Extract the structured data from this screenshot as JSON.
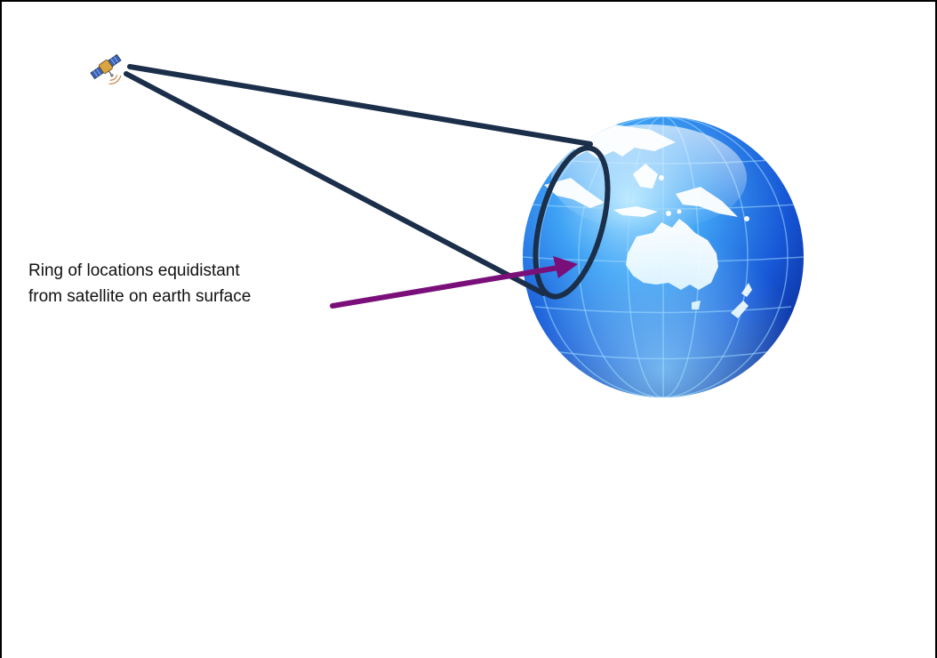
{
  "annotation": {
    "line1": "Ring of locations equidistant",
    "line2": "from satellite on earth surface"
  },
  "colors": {
    "sight_lines": "#1b2f4a",
    "pointer_arrow": "#7a0f7a",
    "globe_light": "#7fd0ff",
    "globe_dark": "#1036b8",
    "land": "#ffffff"
  },
  "icons": {
    "satellite": "satellite-icon",
    "earth": "earth-globe-icon"
  }
}
